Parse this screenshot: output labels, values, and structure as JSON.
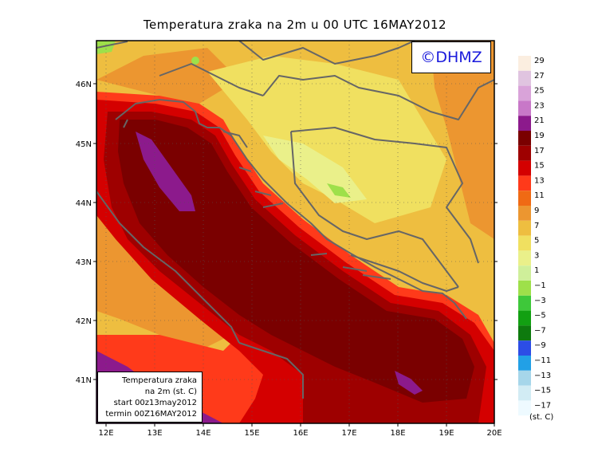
{
  "title": "Temperatura zraka na 2m u 00 UTC 16MAY2012",
  "logo": "©DHMZ",
  "info_box": {
    "line1": "Temperatura zraka",
    "line2": "na 2m (st. C)",
    "line3": "start 00z13may2012",
    "line4": "termin 00Z16MAY2012"
  },
  "axes": {
    "lat_labels": [
      "46N",
      "45N",
      "44N",
      "43N",
      "42N",
      "41N"
    ],
    "lon_labels": [
      "12E",
      "13E",
      "14E",
      "15E",
      "16E",
      "17E",
      "18E",
      "19E",
      "20E"
    ]
  },
  "legend": {
    "unit": "(st. C)",
    "labels": [
      "29",
      "27",
      "25",
      "23",
      "21",
      "19",
      "17",
      "15",
      "13",
      "11",
      "9",
      "7",
      "5",
      "3",
      "1",
      "−1",
      "−3",
      "−5",
      "−7",
      "−9",
      "−11",
      "−13",
      "−15",
      "−17"
    ],
    "colors": [
      "#fbeee0",
      "#e0c4e0",
      "#d9a3d9",
      "#c878c8",
      "#8c1a8c",
      "#7a0000",
      "#9e0000",
      "#d40000",
      "#ff3a1a",
      "#f06a14",
      "#ec9630",
      "#eebe40",
      "#f0e060",
      "#eaf08a",
      "#cfef9a",
      "#9ee04a",
      "#3ec83a",
      "#12a012",
      "#0e7a0e",
      "#2c4de6",
      "#22a0e6",
      "#a6d6ea",
      "#d2ecf4",
      "#eefaff"
    ]
  },
  "map_colors": {
    "sea_core": "#7a0000",
    "sea_mid": "#9e0000",
    "sea_edge": "#d40000",
    "sea_warm": "#ff3a1a",
    "land_base": "#eebe40",
    "land_light": "#f0e060",
    "land_pale": "#eaf08a",
    "land_warm": "#ec9630",
    "land_orange": "#f06a14",
    "cold": "#9ee04a",
    "purple": "#8c1a8c",
    "border": "#666666"
  }
}
